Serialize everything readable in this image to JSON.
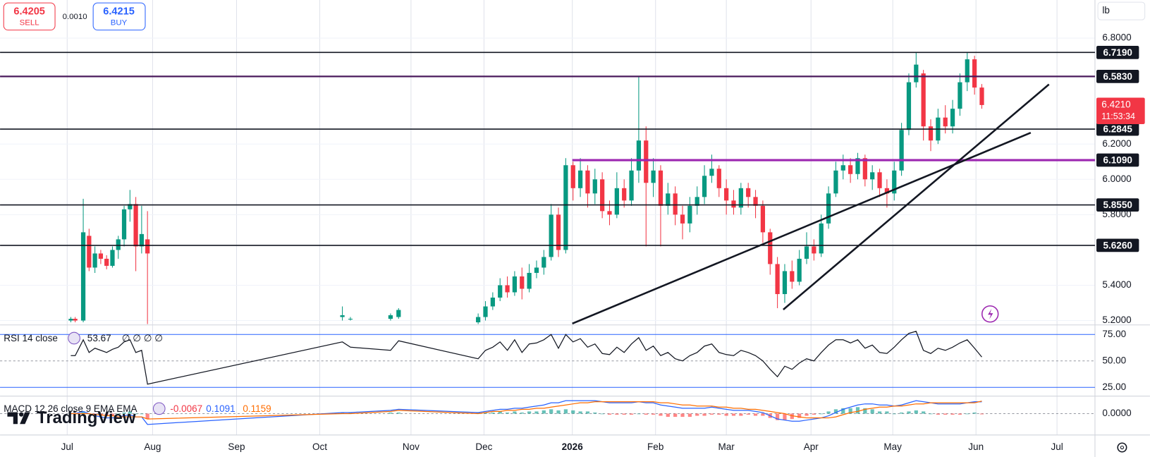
{
  "quote": {
    "sell": "6.4205",
    "sell_label": "SELL",
    "spread": "0.0010",
    "buy": "6.4215",
    "buy_label": "BUY",
    "unit": "lb"
  },
  "watermark": "TradingView",
  "chart_data": {
    "type": "candlestick",
    "xlim": [
      0,
      150
    ],
    "xticks": [
      {
        "value": 9.2,
        "label": "Jul"
      },
      {
        "value": 20.9,
        "label": "Aug"
      },
      {
        "value": 32.4,
        "label": "Sep"
      },
      {
        "value": 43.8,
        "label": "Oct"
      },
      {
        "value": 56.3,
        "label": "Nov"
      },
      {
        "value": 66.3,
        "label": "Dec"
      },
      {
        "value": 78.4,
        "label": "2026"
      },
      {
        "value": 89.8,
        "label": "Feb"
      },
      {
        "value": 99.5,
        "label": "Mar"
      },
      {
        "value": 111.1,
        "label": "Apr"
      },
      {
        "value": 122.3,
        "label": "May"
      },
      {
        "value": 133.7,
        "label": "Jun"
      },
      {
        "value": 144.8,
        "label": "Jul"
      }
    ],
    "ylim": [
      5.175,
      7.016
    ],
    "yticks": [
      {
        "value": 6.8,
        "label": "6.8000"
      },
      {
        "value": 6.2,
        "label": "6.2000"
      },
      {
        "value": 6.0,
        "label": "6.0000"
      },
      {
        "value": 5.8,
        "label": "5.8000"
      },
      {
        "value": 5.4,
        "label": "5.4000"
      },
      {
        "value": 5.2,
        "label": "5.2000"
      }
    ],
    "grid": true,
    "candles": {
      "up_color": "#089981",
      "down_color": "#f23645",
      "x": [
        9.7,
        10.3,
        11.4,
        12.2,
        13.0,
        13.8,
        14.6,
        15.4,
        16.2,
        17.0,
        17.8,
        18.6,
        19.4,
        20.2,
        46.9,
        48.0,
        53.5,
        54.6,
        65.5,
        66.5,
        67.5,
        68.5,
        69.5,
        70.5,
        71.5,
        72.5,
        73.5,
        74.5,
        75.5,
        76.5,
        77.5,
        78.5,
        79.5,
        80.5,
        81.5,
        82.5,
        83.5,
        84.5,
        85.5,
        86.5,
        87.5,
        88.5,
        89.5,
        90.5,
        91.5,
        92.5,
        93.5,
        94.5,
        95.5,
        96.5,
        97.5,
        98.5,
        99.5,
        100.5,
        101.5,
        102.5,
        103.5,
        104.5,
        105.5,
        106.5,
        107.5,
        108.5,
        109.5,
        110.5,
        111.5,
        112.5,
        113.5,
        114.5,
        115.5,
        116.5,
        117.5,
        118.5,
        119.5,
        120.5,
        121.5,
        122.5,
        123.5,
        124.5,
        125.5,
        126.5,
        127.5,
        128.5,
        129.5,
        130.5,
        131.5,
        132.5,
        133.5,
        134.5
      ],
      "open": [
        5.2,
        5.21,
        5.2,
        5.68,
        5.5,
        5.58,
        5.55,
        5.51,
        5.6,
        5.66,
        5.83,
        5.86,
        5.62,
        5.66,
        5.22,
        5.21,
        5.21,
        5.22,
        5.19,
        5.22,
        5.28,
        5.33,
        5.4,
        5.36,
        5.45,
        5.38,
        5.47,
        5.5,
        5.56,
        5.8,
        5.6,
        6.08,
        5.95,
        6.05,
        5.92,
        6.0,
        5.82,
        5.8,
        5.95,
        5.88,
        6.05,
        6.22,
        5.98,
        6.05,
        5.85,
        5.92,
        5.8,
        5.75,
        5.85,
        5.9,
        6.02,
        6.06,
        5.95,
        5.88,
        5.84,
        5.95,
        5.9,
        5.85,
        5.7,
        5.52,
        5.35,
        5.48,
        5.42,
        5.55,
        5.62,
        5.58,
        5.75,
        5.92,
        6.05,
        6.08,
        6.03,
        6.12,
        6.0,
        6.04,
        5.95,
        5.92,
        6.05,
        6.28,
        6.55,
        6.6,
        6.3,
        6.22,
        6.35,
        6.3,
        6.4,
        6.55,
        6.68,
        6.52
      ],
      "high": [
        5.22,
        5.22,
        5.89,
        5.72,
        5.62,
        5.6,
        5.57,
        5.62,
        5.68,
        5.85,
        5.94,
        5.9,
        5.85,
        5.82,
        5.28,
        5.22,
        5.24,
        5.27,
        5.24,
        5.31,
        5.36,
        5.44,
        5.45,
        5.48,
        5.5,
        5.52,
        5.54,
        5.6,
        5.86,
        5.84,
        6.12,
        6.1,
        6.12,
        6.08,
        6.06,
        6.04,
        5.88,
        6.04,
        6.0,
        6.12,
        6.58,
        6.3,
        6.12,
        6.08,
        5.98,
        5.96,
        5.85,
        5.9,
        5.96,
        6.08,
        6.14,
        6.08,
        6.0,
        5.94,
        5.98,
        5.98,
        5.94,
        5.88,
        5.72,
        5.56,
        5.52,
        5.54,
        5.6,
        5.7,
        5.66,
        5.8,
        5.96,
        6.1,
        6.14,
        6.12,
        6.15,
        6.14,
        6.08,
        6.06,
        6.0,
        6.1,
        6.32,
        6.6,
        6.72,
        6.62,
        6.34,
        6.4,
        6.42,
        6.45,
        6.6,
        6.72,
        6.7,
        6.54
      ],
      "low": [
        5.19,
        5.19,
        5.19,
        5.48,
        5.47,
        5.52,
        5.49,
        5.5,
        5.55,
        5.62,
        5.76,
        5.48,
        5.58,
        5.18,
        5.2,
        5.2,
        5.2,
        5.21,
        5.18,
        5.2,
        5.26,
        5.31,
        5.33,
        5.34,
        5.32,
        5.36,
        5.44,
        5.46,
        5.54,
        5.56,
        5.58,
        5.88,
        5.9,
        5.84,
        5.86,
        5.78,
        5.74,
        5.78,
        5.84,
        5.85,
        5.98,
        5.62,
        5.9,
        5.62,
        5.8,
        5.74,
        5.66,
        5.7,
        5.8,
        5.86,
        5.98,
        5.9,
        5.8,
        5.8,
        5.8,
        5.84,
        5.78,
        5.64,
        5.46,
        5.27,
        5.3,
        5.38,
        5.4,
        5.52,
        5.54,
        5.56,
        5.72,
        5.9,
        6.0,
        5.98,
        6.0,
        5.96,
        5.94,
        5.9,
        5.84,
        5.88,
        6.02,
        6.25,
        6.52,
        6.22,
        6.16,
        6.2,
        6.26,
        6.26,
        6.36,
        6.5,
        6.48,
        6.4
      ],
      "close": [
        5.21,
        5.2,
        5.7,
        5.5,
        5.58,
        5.55,
        5.51,
        5.6,
        5.66,
        5.83,
        5.86,
        5.62,
        5.69,
        5.58,
        5.23,
        5.21,
        5.23,
        5.26,
        5.22,
        5.28,
        5.33,
        5.4,
        5.36,
        5.45,
        5.38,
        5.47,
        5.5,
        5.56,
        5.8,
        5.6,
        6.08,
        5.95,
        6.05,
        5.92,
        6.0,
        5.82,
        5.8,
        5.95,
        5.88,
        6.05,
        6.22,
        5.98,
        6.05,
        5.85,
        5.92,
        5.8,
        5.75,
        5.85,
        5.9,
        6.02,
        6.06,
        5.95,
        5.88,
        5.84,
        5.95,
        5.9,
        5.85,
        5.7,
        5.52,
        5.35,
        5.48,
        5.42,
        5.55,
        5.62,
        5.58,
        5.75,
        5.92,
        6.05,
        6.08,
        6.03,
        6.12,
        6.0,
        6.04,
        5.95,
        5.92,
        6.05,
        6.28,
        6.55,
        6.65,
        6.3,
        6.22,
        6.35,
        6.3,
        6.4,
        6.55,
        6.68,
        6.52,
        6.421
      ]
    },
    "levels": [
      {
        "value": 6.719,
        "label": "6.7190",
        "color": "#131722"
      },
      {
        "value": 6.583,
        "label": "6.5830",
        "color": "#4a1a5c"
      },
      {
        "value": 6.2845,
        "label": "6.2845",
        "color": "#131722"
      },
      {
        "value": 6.109,
        "label": "6.1090",
        "color": "#9c27b0",
        "from": 78.4
      },
      {
        "value": 5.855,
        "label": "5.8550",
        "color": "#131722"
      },
      {
        "value": 5.626,
        "label": "5.6260",
        "color": "#131722"
      }
    ],
    "trendlines": [
      {
        "x": [
          78.4,
          141.2
        ],
        "y": [
          5.183,
          6.264
        ]
      },
      {
        "x": [
          107.3,
          143.7
        ],
        "y": [
          5.262,
          6.538
        ]
      }
    ],
    "last": {
      "value": 6.421,
      "label": "6.4210",
      "countdown": "11:53:34",
      "color": "#f23645"
    },
    "rsi": {
      "type": "line",
      "title": "RSI 14 close",
      "extra": "∅ ∅ ∅ ∅",
      "color": "#131722",
      "band_color": "#2962ff",
      "ylim": [
        16.7,
        84
      ],
      "yticks": [
        {
          "value": 75,
          "label": "75.00"
        },
        {
          "value": 50,
          "label": "50.00"
        },
        {
          "value": 25,
          "label": "25.00"
        }
      ],
      "values": [
        55,
        55,
        70,
        58,
        62,
        60,
        58,
        61,
        63,
        68,
        70,
        58,
        60,
        28,
        68,
        63,
        60,
        69,
        52,
        60,
        63,
        68,
        60,
        70,
        58,
        66,
        67,
        70,
        75,
        62,
        75,
        68,
        71,
        63,
        66,
        57,
        56,
        63,
        58,
        66,
        72,
        60,
        64,
        55,
        58,
        52,
        50,
        55,
        58,
        64,
        66,
        58,
        56,
        55,
        60,
        58,
        55,
        50,
        42,
        35,
        45,
        42,
        48,
        52,
        50,
        58,
        65,
        70,
        70,
        67,
        70,
        62,
        65,
        58,
        57,
        63,
        70,
        76,
        78,
        60,
        57,
        62,
        60,
        63,
        67,
        70,
        62,
        53.67
      ]
    },
    "macd": {
      "type": "macd",
      "title": "MACD 12 26 close 9 EMA EMA",
      "macd_color": "#2962ff",
      "signal_color": "#ff6d00",
      "hist_up": "#26a69a",
      "hist_down": "#ff5252",
      "ylim": [
        -0.198,
        0.162
      ],
      "yticks": [
        {
          "value": 0,
          "label": "0.0000"
        }
      ],
      "macd": [
        0.0,
        0.0,
        0.02,
        0.0,
        -0.02,
        -0.03,
        -0.04,
        -0.04,
        -0.03,
        -0.02,
        -0.01,
        -0.03,
        -0.03,
        -0.1,
        0.01,
        0.01,
        0.03,
        0.04,
        0.01,
        0.02,
        0.03,
        0.04,
        0.04,
        0.05,
        0.05,
        0.06,
        0.07,
        0.08,
        0.1,
        0.1,
        0.12,
        0.12,
        0.12,
        0.12,
        0.12,
        0.11,
        0.1,
        0.1,
        0.1,
        0.1,
        0.11,
        0.1,
        0.1,
        0.08,
        0.07,
        0.06,
        0.05,
        0.05,
        0.05,
        0.05,
        0.06,
        0.05,
        0.04,
        0.03,
        0.03,
        0.03,
        0.02,
        0.01,
        -0.02,
        -0.05,
        -0.06,
        -0.07,
        -0.07,
        -0.06,
        -0.05,
        -0.04,
        -0.02,
        0.01,
        0.04,
        0.06,
        0.08,
        0.09,
        0.09,
        0.08,
        0.08,
        0.07,
        0.08,
        0.1,
        0.12,
        0.11,
        0.1,
        0.09,
        0.09,
        0.09,
        0.09,
        0.1,
        0.11,
        0.1091
      ],
      "signal": [
        0.0,
        0.0,
        0.0,
        0.0,
        -0.01,
        -0.01,
        -0.02,
        -0.02,
        -0.03,
        -0.03,
        -0.03,
        -0.03,
        -0.03,
        -0.05,
        0.0,
        0.0,
        0.02,
        0.03,
        0.0,
        0.01,
        0.02,
        0.02,
        0.03,
        0.03,
        0.04,
        0.04,
        0.05,
        0.05,
        0.06,
        0.07,
        0.08,
        0.09,
        0.1,
        0.1,
        0.11,
        0.11,
        0.11,
        0.11,
        0.11,
        0.11,
        0.11,
        0.11,
        0.11,
        0.1,
        0.1,
        0.09,
        0.08,
        0.08,
        0.07,
        0.07,
        0.07,
        0.06,
        0.06,
        0.05,
        0.05,
        0.04,
        0.04,
        0.03,
        0.02,
        0.01,
        0.0,
        -0.02,
        -0.03,
        -0.04,
        -0.04,
        -0.04,
        -0.04,
        -0.03,
        -0.01,
        0.01,
        0.02,
        0.04,
        0.05,
        0.06,
        0.06,
        0.07,
        0.07,
        0.08,
        0.09,
        0.09,
        0.1,
        0.1,
        0.1,
        0.1,
        0.1,
        0.1,
        0.1,
        0.1159
      ],
      "hist": [
        0.0,
        0.0,
        0.02,
        0.0,
        -0.01,
        -0.02,
        -0.02,
        -0.02,
        0.0,
        0.01,
        0.02,
        0.0,
        0.0,
        -0.05,
        0.01,
        0.01,
        0.01,
        0.01,
        0.01,
        0.01,
        0.01,
        0.02,
        0.01,
        0.02,
        0.01,
        0.02,
        0.02,
        0.03,
        0.04,
        0.03,
        0.04,
        0.03,
        0.02,
        0.02,
        0.01,
        0.0,
        -0.01,
        -0.01,
        -0.01,
        -0.01,
        0.0,
        -0.01,
        -0.01,
        -0.02,
        -0.03,
        -0.03,
        -0.03,
        -0.03,
        -0.02,
        -0.02,
        -0.01,
        -0.01,
        -0.02,
        -0.02,
        -0.02,
        -0.01,
        -0.02,
        -0.02,
        -0.04,
        -0.06,
        -0.06,
        -0.05,
        -0.04,
        -0.02,
        -0.01,
        0.0,
        0.02,
        0.04,
        0.05,
        0.05,
        0.06,
        0.05,
        0.04,
        0.02,
        0.02,
        0.0,
        0.01,
        0.02,
        0.03,
        0.02,
        0.0,
        -0.01,
        -0.01,
        -0.01,
        -0.01,
        0.0,
        0.01,
        -0.0067
      ]
    }
  }
}
